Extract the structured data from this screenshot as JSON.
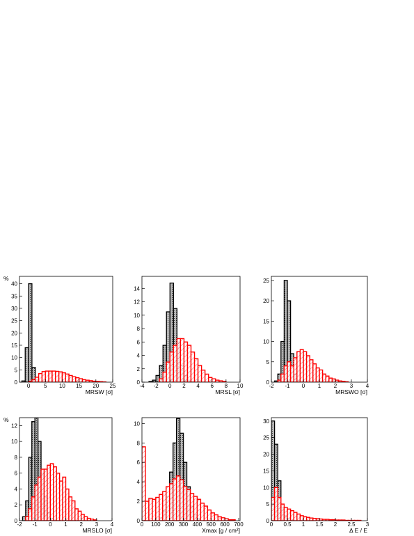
{
  "chart_data": [
    {
      "type": "histogram",
      "ylabel": "%",
      "xlabel": "MRSW [σ]",
      "bins": [
        -2,
        -1,
        0,
        1,
        2,
        3,
        4,
        5,
        6,
        7,
        8,
        9,
        10,
        11,
        12,
        13,
        14,
        15,
        16,
        17,
        18,
        19,
        20,
        21,
        22,
        23,
        24,
        25
      ],
      "series": [
        {
          "color": "#000000",
          "pattern": "dots",
          "values": [
            0.5,
            14,
            40,
            6,
            1,
            0,
            0,
            0,
            0,
            0,
            0,
            0,
            0,
            0,
            0,
            0,
            0,
            0,
            0,
            0,
            0,
            0,
            0,
            0,
            0,
            0,
            0
          ]
        },
        {
          "color": "#ff0000",
          "pattern": "hatch",
          "values": [
            0,
            0,
            0.3,
            1,
            2,
            3.5,
            4.3,
            4.5,
            4.5,
            4.5,
            4.4,
            4.2,
            3.8,
            3.3,
            2.7,
            2.2,
            1.8,
            1.4,
            1,
            0.8,
            0.6,
            0.4,
            0.3,
            0.2,
            0.1,
            0,
            0
          ]
        }
      ],
      "xlim": [
        -2.7,
        25
      ],
      "xticks": [
        0,
        5,
        10,
        15,
        20,
        25
      ],
      "ylim": [
        0,
        43
      ],
      "yticks": [
        0,
        5,
        10,
        15,
        20,
        25,
        30,
        35,
        40
      ]
    },
    {
      "type": "histogram",
      "xlabel": "MRSL [σ]",
      "bins": [
        -4,
        -3.5,
        -3,
        -2.5,
        -2,
        -1.5,
        -1,
        -0.5,
        0,
        0.5,
        1,
        1.5,
        2,
        2.5,
        3,
        3.5,
        4,
        4.5,
        5,
        5.5,
        6,
        6.5,
        7,
        7.5,
        8,
        8.5,
        9,
        9.5,
        10
      ],
      "series": [
        {
          "color": "#000000",
          "pattern": "dots",
          "values": [
            0,
            0,
            0.1,
            0.3,
            1,
            2.5,
            5.5,
            10.5,
            14.8,
            11,
            6,
            2.5,
            1,
            0.3,
            0.1,
            0,
            0,
            0,
            0,
            0,
            0,
            0,
            0,
            0,
            0,
            0,
            0,
            0
          ]
        },
        {
          "color": "#ff0000",
          "pattern": "hatch",
          "values": [
            0,
            0,
            0,
            0,
            0,
            0.5,
            1.5,
            3,
            4.5,
            5.5,
            6.5,
            6.5,
            6,
            5.5,
            4.5,
            3.5,
            2.5,
            1.8,
            1.2,
            0.7,
            0.5,
            0.3,
            0.2,
            0.1,
            0,
            0,
            0,
            0
          ]
        }
      ],
      "xlim": [
        -4,
        10
      ],
      "xticks": [
        -4,
        -2,
        0,
        2,
        4,
        6,
        8,
        10
      ],
      "ylim": [
        0,
        15.8
      ],
      "yticks": [
        0,
        2,
        4,
        6,
        8,
        10,
        12,
        14
      ]
    },
    {
      "type": "histogram",
      "xlabel": "MRSWO [σ]",
      "bins": [
        -2,
        -1.8,
        -1.6,
        -1.4,
        -1.2,
        -1,
        -0.8,
        -0.6,
        -0.4,
        -0.2,
        0,
        0.2,
        0.4,
        0.6,
        0.8,
        1,
        1.2,
        1.4,
        1.6,
        1.8,
        2,
        2.2,
        2.4,
        2.6,
        2.8,
        3,
        3.2,
        3.4,
        3.6,
        3.8,
        4
      ],
      "series": [
        {
          "color": "#000000",
          "pattern": "dots",
          "values": [
            0,
            0.3,
            2,
            10,
            25,
            20,
            7,
            2,
            0.5,
            0.1,
            0,
            0,
            0,
            0,
            0,
            0,
            0,
            0,
            0,
            0,
            0,
            0,
            0,
            0,
            0,
            0,
            0,
            0,
            0,
            0
          ]
        },
        {
          "color": "#ff0000",
          "pattern": "hatch",
          "values": [
            0,
            0,
            0.5,
            2,
            4,
            5,
            4,
            6,
            7.5,
            8,
            7.5,
            6.5,
            5.5,
            4.5,
            3.5,
            3,
            2,
            1.5,
            1,
            0.8,
            0.5,
            0.3,
            0.2,
            0.1,
            0,
            0,
            0,
            0,
            0,
            0
          ]
        }
      ],
      "xlim": [
        -2,
        4
      ],
      "xticks": [
        -2,
        -1,
        0,
        1,
        2,
        3,
        4
      ],
      "ylim": [
        0,
        26
      ],
      "yticks": [
        0,
        5,
        10,
        15,
        20,
        25
      ]
    },
    {
      "type": "histogram",
      "ylabel": "%",
      "xlabel": "MRSLO [σ]",
      "bins": [
        -2,
        -1.8,
        -1.6,
        -1.4,
        -1.2,
        -1,
        -0.8,
        -0.6,
        -0.4,
        -0.2,
        0,
        0.2,
        0.4,
        0.6,
        0.8,
        1,
        1.2,
        1.4,
        1.6,
        1.8,
        2,
        2.2,
        2.4,
        2.6,
        2.8,
        3,
        3.2,
        3.4,
        3.6,
        3.8,
        4
      ],
      "series": [
        {
          "color": "#000000",
          "pattern": "dots",
          "values": [
            0,
            0.5,
            2.5,
            8,
            12.5,
            13,
            10,
            6,
            3,
            1,
            0.3,
            0.1,
            0,
            0,
            0,
            0,
            0,
            0,
            0,
            0,
            0,
            0,
            0,
            0,
            0,
            0,
            0,
            0,
            0,
            0
          ]
        },
        {
          "color": "#ff0000",
          "pattern": "hatch",
          "values": [
            0,
            0,
            0.5,
            1.5,
            3,
            4.5,
            5.5,
            6.5,
            6.5,
            7,
            7.2,
            6.8,
            6,
            5,
            5.5,
            4,
            3,
            2.5,
            1.5,
            1.2,
            0.8,
            0.5,
            0.3,
            0.2,
            0.1,
            0,
            0,
            0,
            0,
            0
          ]
        }
      ],
      "xlim": [
        -2,
        4
      ],
      "xticks": [
        -2,
        -1,
        0,
        1,
        2,
        3,
        4
      ],
      "ylim": [
        0,
        13
      ],
      "yticks": [
        0,
        2,
        4,
        6,
        8,
        10,
        12
      ]
    },
    {
      "type": "histogram",
      "xlabel": "Xmax [g / cm²]",
      "bins": [
        0,
        25,
        50,
        75,
        100,
        125,
        150,
        175,
        200,
        225,
        250,
        275,
        300,
        325,
        350,
        375,
        400,
        425,
        450,
        475,
        500,
        525,
        550,
        575,
        600,
        625,
        650,
        675,
        700
      ],
      "series": [
        {
          "color": "#000000",
          "pattern": "dots",
          "values": [
            0,
            0,
            0,
            0,
            0,
            0.3,
            1,
            2.5,
            5,
            8,
            10.5,
            9,
            6,
            3.5,
            1.5,
            0.6,
            0.2,
            0,
            0,
            0,
            0,
            0,
            0,
            0,
            0,
            0,
            0,
            0
          ]
        },
        {
          "color": "#ff0000",
          "pattern": "hatch",
          "values": [
            7.6,
            2,
            2.3,
            2.2,
            2.4,
            2.7,
            3,
            3.5,
            3.8,
            4.3,
            4.6,
            4.2,
            3.5,
            3.2,
            2.8,
            2.5,
            2.2,
            1.8,
            1.5,
            1.1,
            0.8,
            0.6,
            0.4,
            0.3,
            0.2,
            0.1,
            0.1,
            0
          ]
        }
      ],
      "xlim": [
        0,
        710
      ],
      "xticks": [
        0,
        100,
        200,
        300,
        400,
        500,
        600,
        700
      ],
      "ylim": [
        0,
        10.6
      ],
      "yticks": [
        0,
        2,
        4,
        6,
        8,
        10
      ]
    },
    {
      "type": "histogram",
      "xlabel": "Δ E / E",
      "bins": [
        0,
        0.1,
        0.2,
        0.3,
        0.4,
        0.5,
        0.6,
        0.7,
        0.8,
        0.9,
        1,
        1.1,
        1.2,
        1.3,
        1.4,
        1.5,
        1.6,
        1.7,
        1.8,
        1.9,
        2,
        2.1,
        2.2,
        2.3,
        2.4,
        2.5,
        2.6,
        2.7,
        2.8,
        2.9,
        3
      ],
      "series": [
        {
          "color": "#000000",
          "pattern": "dots",
          "values": [
            30,
            23,
            12,
            4,
            1.5,
            0.5,
            0.2,
            0,
            0,
            0,
            0,
            0,
            0,
            0,
            0,
            0,
            0,
            0,
            0,
            0,
            0,
            0,
            0,
            0,
            0,
            0,
            0,
            0,
            0,
            0
          ]
        },
        {
          "color": "#ff0000",
          "pattern": "hatch",
          "values": [
            7,
            10,
            7,
            5,
            4,
            3.5,
            3,
            2.5,
            2,
            1.5,
            1.2,
            1,
            0.8,
            0.7,
            0.6,
            0.5,
            0.4,
            0.4,
            0.3,
            0.3,
            0.2,
            0.2,
            0.2,
            0.1,
            0.1,
            0.1,
            0.1,
            0.1,
            0,
            0
          ]
        }
      ],
      "xlim": [
        0,
        3
      ],
      "xticks": [
        0,
        0.5,
        1,
        1.5,
        2,
        2.5,
        3
      ],
      "ylim": [
        0,
        31
      ],
      "yticks": [
        0,
        5,
        10,
        15,
        20,
        25,
        30
      ]
    }
  ]
}
